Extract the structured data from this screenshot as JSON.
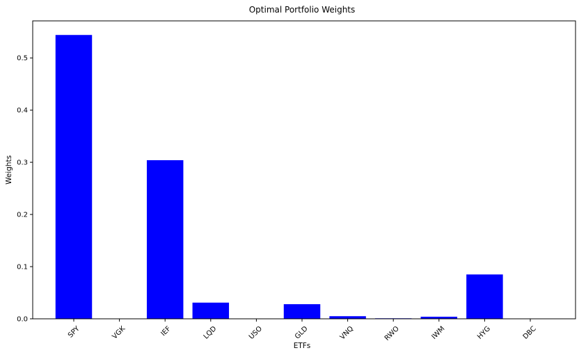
{
  "chart_data": {
    "type": "bar",
    "title": "Optimal Portfolio Weights",
    "xlabel": "ETFs",
    "ylabel": "Weights",
    "categories": [
      "SPY",
      "VGK",
      "IEF",
      "LQD",
      "USO",
      "GLD",
      "VNQ",
      "RWO",
      "IWM",
      "HYG",
      "DBC"
    ],
    "values": [
      0.544,
      0.0,
      0.304,
      0.031,
      0.0,
      0.028,
      0.005,
      0.001,
      0.004,
      0.085,
      0.0
    ],
    "ylim": [
      0,
      0.571
    ],
    "yticks": [
      0.0,
      0.1,
      0.2,
      0.3,
      0.4,
      0.5
    ],
    "ytick_labels": [
      "0.0",
      "0.1",
      "0.2",
      "0.3",
      "0.4",
      "0.5"
    ],
    "xtick_rotation_deg": 45,
    "bar_color": "#0000ff",
    "grid": false,
    "legend": "none"
  }
}
